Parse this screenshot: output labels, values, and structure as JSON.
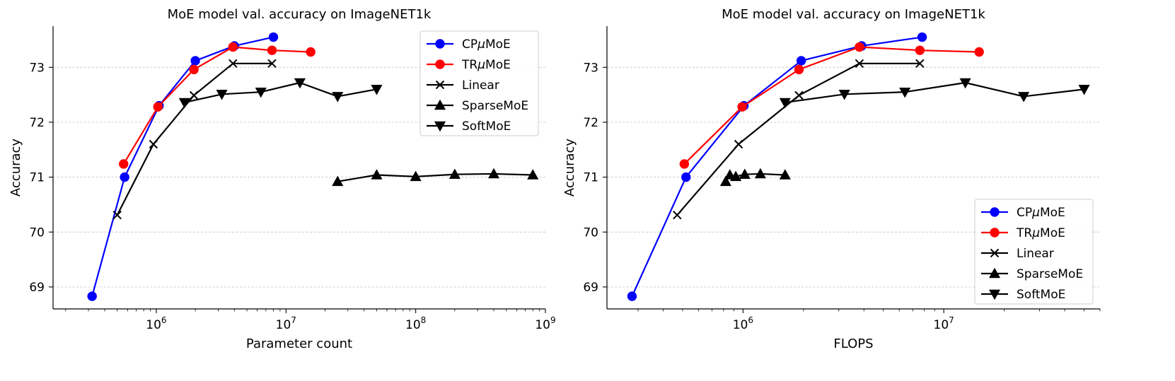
{
  "chart_data": [
    {
      "type": "line",
      "title": "MoE model val. accuracy on ImageNET1k",
      "xlabel": "Parameter count",
      "ylabel": "Accuracy",
      "xscale": "log",
      "xlim": [
        160000,
        1000000000
      ],
      "ylim": [
        68.6,
        73.75
      ],
      "yticks": [
        69,
        70,
        71,
        72,
        73
      ],
      "xticks": [
        {
          "value": 1000000,
          "base": "10",
          "exp": "6"
        },
        {
          "value": 10000000,
          "base": "10",
          "exp": "7"
        },
        {
          "value": 100000000,
          "base": "10",
          "exp": "8"
        },
        {
          "value": 1000000000,
          "base": "10",
          "exp": "9"
        }
      ],
      "grid": "y",
      "legend": "top-right",
      "series": [
        {
          "name": "CPμMoE",
          "label_prefix": "CP",
          "label_greek": "μ",
          "label_suffix": "MoE",
          "color": "#0000ff",
          "marker": "circle",
          "x": [
            320000,
            570000,
            1050000,
            2000000,
            4000000,
            8000000
          ],
          "y": [
            68.83,
            71.0,
            72.3,
            73.12,
            73.39,
            73.55
          ]
        },
        {
          "name": "TRμMoE",
          "label_prefix": "TR",
          "label_greek": "μ",
          "label_suffix": "MoE",
          "color": "#ff0000",
          "marker": "circle",
          "x": [
            560000,
            1030000,
            1950000,
            3900000,
            7800000,
            15500000
          ],
          "y": [
            71.24,
            72.28,
            72.96,
            73.37,
            73.31,
            73.28
          ]
        },
        {
          "name": "Linear",
          "label_prefix": "Linear",
          "label_greek": "",
          "label_suffix": "",
          "color": "#000000",
          "marker": "x",
          "x": [
            500000,
            950000,
            1950000,
            3900000,
            7800000
          ],
          "y": [
            70.31,
            71.6,
            72.49,
            73.07,
            73.07
          ]
        },
        {
          "name": "SparseMoE",
          "label_prefix": "SparseMoE",
          "label_greek": "",
          "label_suffix": "",
          "color": "#000000",
          "marker": "triangle-up",
          "x": [
            25000000,
            50000000,
            100000000,
            200000000,
            400000000,
            800000000
          ],
          "y": [
            70.92,
            71.04,
            71.01,
            71.05,
            71.06,
            71.04
          ]
        },
        {
          "name": "SoftMoE",
          "label_prefix": "SoftMoE",
          "label_greek": "",
          "label_suffix": "",
          "color": "#000000",
          "marker": "triangle-down",
          "x": [
            1650000,
            3200000,
            6400000,
            12800000,
            25000000,
            50000000
          ],
          "y": [
            72.36,
            72.51,
            72.55,
            72.72,
            72.47,
            72.6
          ]
        }
      ]
    },
    {
      "type": "line",
      "title": "MoE model val. accuracy on ImageNET1k",
      "xlabel": "FLOPS",
      "ylabel": "Accuracy",
      "xscale": "log",
      "xlim": [
        210000,
        60000000
      ],
      "ylim": [
        68.6,
        73.75
      ],
      "yticks": [
        69,
        70,
        71,
        72,
        73
      ],
      "xticks": [
        {
          "value": 1000000,
          "base": "10",
          "exp": "6"
        },
        {
          "value": 10000000,
          "base": "10",
          "exp": "7"
        }
      ],
      "grid": "y",
      "legend": "bottom-right",
      "series": [
        {
          "name": "CPμMoE",
          "label_prefix": "CP",
          "label_greek": "μ",
          "label_suffix": "MoE",
          "color": "#0000ff",
          "marker": "circle",
          "x": [
            280000,
            520000,
            1010000,
            1950000,
            3900000,
            7800000
          ],
          "y": [
            68.83,
            71.0,
            72.3,
            73.12,
            73.39,
            73.55
          ]
        },
        {
          "name": "TRμMoE",
          "label_prefix": "TR",
          "label_greek": "μ",
          "label_suffix": "MoE",
          "color": "#ff0000",
          "marker": "circle",
          "x": [
            510000,
            990000,
            1900000,
            3800000,
            7600000,
            15000000
          ],
          "y": [
            71.24,
            72.28,
            72.96,
            73.37,
            73.31,
            73.28
          ]
        },
        {
          "name": "Linear",
          "label_prefix": "Linear",
          "label_greek": "",
          "label_suffix": "",
          "color": "#000000",
          "marker": "x",
          "x": [
            470000,
            950000,
            1900000,
            3800000,
            7600000
          ],
          "y": [
            70.31,
            71.6,
            72.49,
            73.07,
            73.07
          ]
        },
        {
          "name": "SparseMoE",
          "label_prefix": "SparseMoE",
          "label_greek": "",
          "label_suffix": "",
          "color": "#000000",
          "marker": "triangle-up",
          "x": [
            820000,
            860000,
            920000,
            1020000,
            1220000,
            1620000
          ],
          "y": [
            70.92,
            71.04,
            71.01,
            71.05,
            71.06,
            71.04
          ]
        },
        {
          "name": "SoftMoE",
          "label_prefix": "SoftMoE",
          "label_greek": "",
          "label_suffix": "",
          "color": "#000000",
          "marker": "triangle-down",
          "x": [
            1620000,
            3200000,
            6400000,
            12800000,
            25000000,
            50000000
          ],
          "y": [
            72.36,
            72.51,
            72.55,
            72.72,
            72.47,
            72.6
          ]
        }
      ]
    }
  ]
}
